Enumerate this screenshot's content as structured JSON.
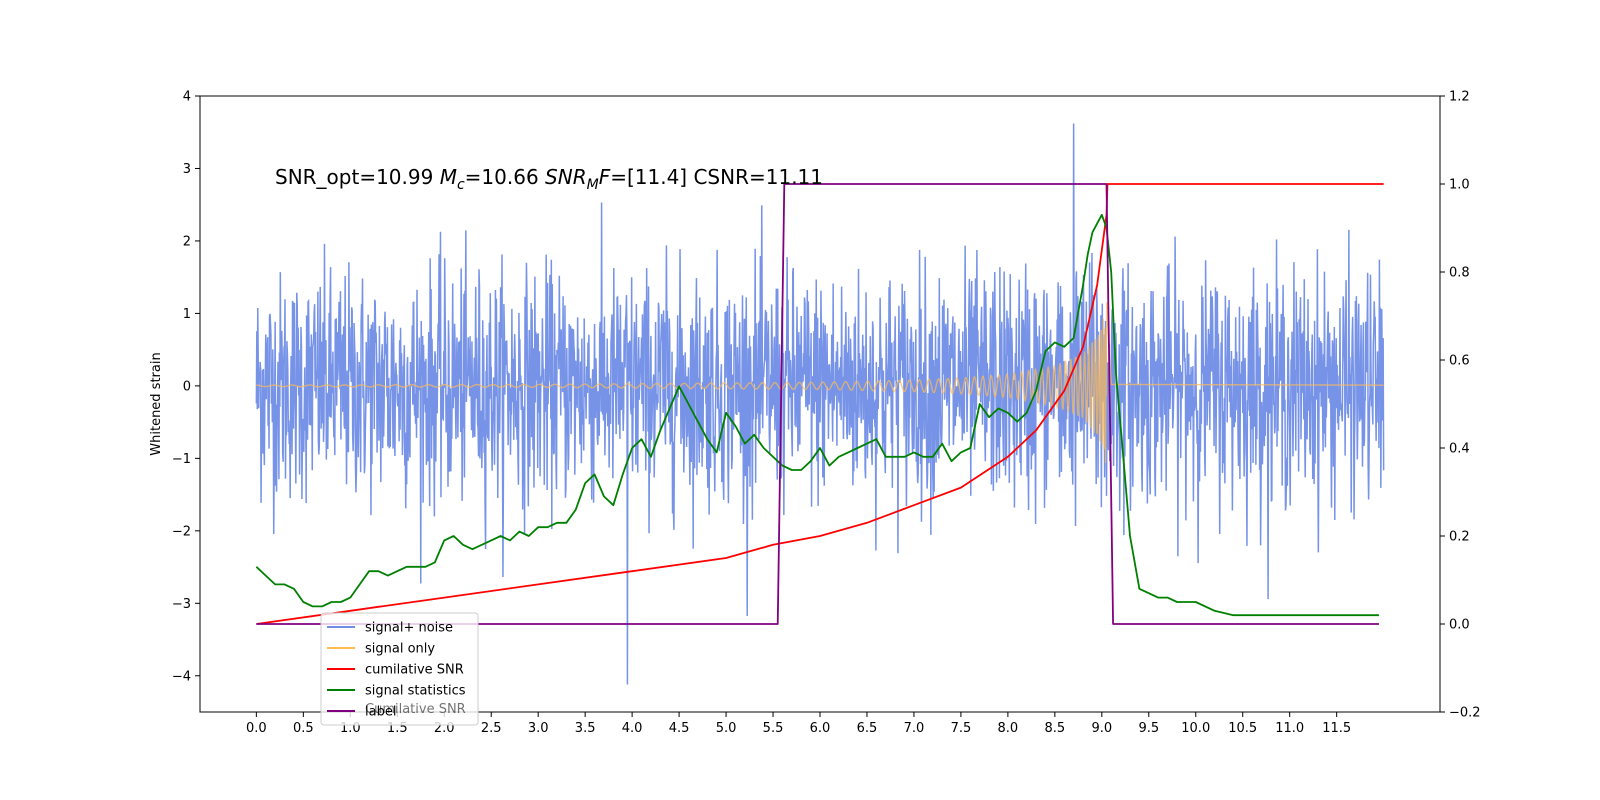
{
  "chart_data": {
    "type": "line",
    "title": "",
    "annotation": {
      "parts": [
        {
          "text": "SNR_opt=10.99 ",
          "italic": false
        },
        {
          "text": "M",
          "italic": true
        },
        {
          "text": "c",
          "italic": true,
          "sub": true
        },
        {
          "text": "=10.66  ",
          "italic": false
        },
        {
          "text": "SNR",
          "italic": true
        },
        {
          "text": "M",
          "italic": true,
          "sub": true
        },
        {
          "text": "F",
          "italic": true
        },
        {
          "text": "=[11.4]   CSNR=11.11",
          "italic": false
        }
      ]
    },
    "xlabel": "",
    "ylabel_left": "Whitened strain",
    "ylabel_right": "",
    "xlim": [
      -0.6,
      12.6
    ],
    "ylim_left": [
      -4.5,
      4.0
    ],
    "ylim_right": [
      -0.2,
      1.2
    ],
    "xticks": [
      0.0,
      0.5,
      1.0,
      1.5,
      2.0,
      2.5,
      3.0,
      3.5,
      4.0,
      4.5,
      5.0,
      5.5,
      6.0,
      6.5,
      7.0,
      7.5,
      8.0,
      8.5,
      9.0,
      9.5,
      10.0,
      10.5,
      11.0,
      11.5
    ],
    "xtick_labels": [
      "0.0",
      "0.5",
      "1.0",
      "1.5",
      "2.0",
      "2.5",
      "3.0",
      "3.5",
      "4.0",
      "4.5",
      "5.0",
      "5.5",
      "6.0",
      "6.5",
      "7.0",
      "7.5",
      "8.0",
      "8.5",
      "9.0",
      "9.5",
      "10.0",
      "10.5",
      "11.0",
      "11.5"
    ],
    "yticks_left": [
      -4,
      -3,
      -2,
      -1,
      0,
      1,
      2,
      3,
      4
    ],
    "ytick_labels_left": [
      "−4",
      "−3",
      "−2",
      "−1",
      "0",
      "1",
      "2",
      "3",
      "4"
    ],
    "yticks_right": [
      -0.2,
      0.0,
      0.2,
      0.4,
      0.6,
      0.8,
      1.0,
      1.2
    ],
    "ytick_labels_right": [
      "−0.2",
      "0.0",
      "0.2",
      "0.4",
      "0.6",
      "0.8",
      "1.0",
      "1.2"
    ],
    "grid": false,
    "legend_placement": "lower-left",
    "legend": [
      {
        "label": "signal+ noise",
        "color": "#6f8de6"
      },
      {
        "label": "signal only",
        "color": "#ffbb55"
      },
      {
        "label": "cumilative SNR",
        "color": "#ff0000"
      },
      {
        "label": "signal statistics",
        "color": "#008000"
      },
      {
        "label": "label",
        "color": "#800080"
      }
    ],
    "legend_ghost_text": "Cumilative SNR",
    "series": [
      {
        "name": "signal+ noise",
        "axis": "left",
        "color": "#6f8de6",
        "kind": "noise",
        "x_range": [
          0.0,
          12.0
        ],
        "envelope_sigma": 0.95,
        "visible_extremes": {
          "max": 3.62,
          "max_at": 8.7,
          "min": -4.12,
          "min_at": 3.95
        }
      },
      {
        "name": "signal only",
        "axis": "left",
        "color": "#ffbb55",
        "kind": "chirp",
        "x_range": [
          0.0,
          12.0
        ],
        "merger": 9.05,
        "amplitude": {
          "x": [
            0.0,
            3.0,
            5.0,
            6.0,
            7.0,
            7.5,
            8.0,
            8.5,
            8.8,
            9.0,
            9.05,
            9.1,
            12.0
          ],
          "y": [
            0.01,
            0.02,
            0.04,
            0.05,
            0.08,
            0.11,
            0.16,
            0.28,
            0.45,
            0.8,
            1.2,
            0.02,
            0.01
          ]
        }
      },
      {
        "name": "cumilative SNR",
        "axis": "right",
        "color": "#ff0000",
        "x": [
          0.0,
          1.0,
          2.0,
          3.0,
          4.0,
          5.0,
          5.5,
          6.0,
          6.5,
          7.0,
          7.5,
          8.0,
          8.3,
          8.6,
          8.8,
          8.95,
          9.05,
          9.06,
          9.1,
          10.0,
          11.0,
          12.0
        ],
        "y": [
          0.0,
          0.03,
          0.06,
          0.09,
          0.12,
          0.15,
          0.18,
          0.2,
          0.23,
          0.27,
          0.31,
          0.38,
          0.44,
          0.53,
          0.63,
          0.77,
          0.93,
          1.0,
          1.0,
          1.0,
          1.0,
          1.0
        ]
      },
      {
        "name": "signal statistics",
        "axis": "right",
        "color": "#008000",
        "x": [
          0.0,
          0.1,
          0.2,
          0.3,
          0.4,
          0.5,
          0.6,
          0.7,
          0.8,
          0.9,
          1.0,
          1.1,
          1.2,
          1.3,
          1.4,
          1.5,
          1.6,
          1.7,
          1.8,
          1.9,
          2.0,
          2.1,
          2.2,
          2.3,
          2.4,
          2.5,
          2.6,
          2.7,
          2.8,
          2.9,
          3.0,
          3.1,
          3.2,
          3.3,
          3.4,
          3.5,
          3.6,
          3.7,
          3.8,
          3.9,
          4.0,
          4.1,
          4.2,
          4.3,
          4.4,
          4.5,
          4.6,
          4.7,
          4.8,
          4.9,
          5.0,
          5.1,
          5.2,
          5.3,
          5.4,
          5.5,
          5.6,
          5.7,
          5.8,
          5.9,
          6.0,
          6.1,
          6.2,
          6.3,
          6.4,
          6.5,
          6.6,
          6.7,
          6.8,
          6.9,
          7.0,
          7.1,
          7.2,
          7.3,
          7.4,
          7.5,
          7.6,
          7.7,
          7.8,
          7.9,
          8.0,
          8.1,
          8.2,
          8.3,
          8.4,
          8.5,
          8.6,
          8.7,
          8.8,
          8.85,
          8.9,
          8.95,
          9.0,
          9.05,
          9.1,
          9.15,
          9.2,
          9.3,
          9.4,
          9.5,
          9.6,
          9.7,
          9.8,
          9.9,
          10.0,
          10.2,
          10.4,
          10.6,
          10.8,
          11.0,
          11.2,
          11.4,
          11.6,
          11.8,
          11.95
        ],
        "y": [
          0.13,
          0.11,
          0.09,
          0.09,
          0.08,
          0.05,
          0.04,
          0.04,
          0.05,
          0.05,
          0.06,
          0.09,
          0.12,
          0.12,
          0.11,
          0.12,
          0.13,
          0.13,
          0.13,
          0.14,
          0.19,
          0.2,
          0.18,
          0.17,
          0.18,
          0.19,
          0.2,
          0.19,
          0.21,
          0.2,
          0.22,
          0.22,
          0.23,
          0.23,
          0.26,
          0.32,
          0.34,
          0.29,
          0.27,
          0.34,
          0.4,
          0.42,
          0.38,
          0.44,
          0.49,
          0.54,
          0.5,
          0.46,
          0.42,
          0.39,
          0.48,
          0.45,
          0.41,
          0.43,
          0.4,
          0.38,
          0.36,
          0.35,
          0.35,
          0.37,
          0.4,
          0.36,
          0.38,
          0.39,
          0.4,
          0.41,
          0.42,
          0.38,
          0.38,
          0.38,
          0.39,
          0.38,
          0.38,
          0.41,
          0.37,
          0.39,
          0.4,
          0.5,
          0.47,
          0.49,
          0.48,
          0.46,
          0.48,
          0.53,
          0.62,
          0.64,
          0.63,
          0.65,
          0.77,
          0.84,
          0.89,
          0.91,
          0.93,
          0.9,
          0.8,
          0.57,
          0.45,
          0.2,
          0.08,
          0.07,
          0.06,
          0.06,
          0.05,
          0.05,
          0.05,
          0.03,
          0.02,
          0.02,
          0.02,
          0.02,
          0.02,
          0.02,
          0.02,
          0.02,
          0.02
        ]
      },
      {
        "name": "label",
        "axis": "right",
        "color": "#800080",
        "x": [
          0.0,
          5.55,
          5.62,
          9.05,
          9.12,
          11.95
        ],
        "y": [
          0.0,
          0.0,
          1.0,
          1.0,
          0.0,
          0.0
        ]
      }
    ]
  }
}
